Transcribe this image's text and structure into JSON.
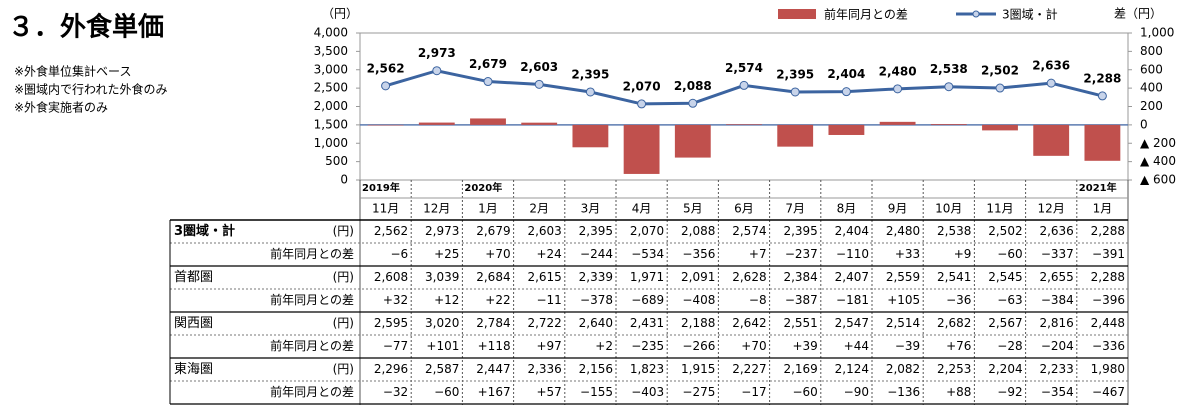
{
  "header": {
    "title": "３．外食単価",
    "notes": [
      "※外食単位集計ベース",
      "※圏域内で行われた外食のみ",
      "※外食実施者のみ"
    ]
  },
  "chart_data": {
    "type": "combo",
    "y_unit": "（円）",
    "y2_unit": "差（円）",
    "categories": [
      "11月",
      "12月",
      "1月",
      "2月",
      "3月",
      "4月",
      "5月",
      "6月",
      "7月",
      "8月",
      "9月",
      "10月",
      "11月",
      "12月",
      "1月"
    ],
    "years": [
      "2019年",
      null,
      "2020年",
      null,
      null,
      null,
      null,
      null,
      null,
      null,
      null,
      null,
      null,
      null,
      "2021年"
    ],
    "series": [
      {
        "name": "前年同月との差",
        "type": "bar",
        "axis": "y2",
        "color": "#c0504d",
        "values": [
          -6,
          25,
          70,
          24,
          -244,
          -534,
          -356,
          7,
          -237,
          -110,
          33,
          9,
          -60,
          -337,
          -391
        ]
      },
      {
        "name": "3圏域・計",
        "type": "line",
        "color": "#3c64a0",
        "values": [
          2562,
          2973,
          2679,
          2603,
          2395,
          2070,
          2088,
          2574,
          2395,
          2404,
          2480,
          2538,
          2502,
          2636,
          2288
        ],
        "value_labels": [
          "2,562",
          "2,973",
          "2,679",
          "2,603",
          "2,395",
          "2,070",
          "2,088",
          "2,574",
          "2,395",
          "2,404",
          "2,480",
          "2,538",
          "2,502",
          "2,636",
          "2,288"
        ]
      }
    ],
    "ylim": [
      0,
      4000
    ],
    "yticks": [
      0,
      500,
      {
        "value": 1000,
        "label": "1,000"
      },
      {
        "value": 1500,
        "label": "1,500"
      },
      {
        "value": 2000,
        "label": "2,000"
      },
      {
        "value": 2500,
        "label": "2,500"
      },
      {
        "value": 3000,
        "label": "3,000"
      },
      {
        "value": 3500,
        "label": "3,500"
      },
      {
        "value": 4000,
        "label": "4,000"
      }
    ],
    "y2lim": [
      -600,
      1000
    ],
    "y2ticks": [
      {
        "value": -600,
        "label": "▲ 600"
      },
      {
        "value": -400,
        "label": "▲ 400"
      },
      {
        "value": -200,
        "label": "▲ 200"
      },
      0,
      200,
      400,
      600,
      800,
      {
        "value": 1000,
        "label": "1,000"
      }
    ],
    "grid": false,
    "legend": "top-right"
  },
  "table": {
    "rows": [
      {
        "name": "3圏域・計",
        "unit": "(円)",
        "values": [
          "2,562",
          "2,973",
          "2,679",
          "2,603",
          "2,395",
          "2,070",
          "2,088",
          "2,574",
          "2,395",
          "2,404",
          "2,480",
          "2,538",
          "2,502",
          "2,636",
          "2,288"
        ],
        "diff_label": "前年同月との差",
        "diffs": [
          "−6",
          "+25",
          "+70",
          "+24",
          "−244",
          "−534",
          "−356",
          "+7",
          "−237",
          "−110",
          "+33",
          "+9",
          "−60",
          "−337",
          "−391"
        ]
      },
      {
        "name": "首都圏",
        "unit": "(円)",
        "values": [
          "2,608",
          "3,039",
          "2,684",
          "2,615",
          "2,339",
          "1,971",
          "2,091",
          "2,628",
          "2,384",
          "2,407",
          "2,559",
          "2,541",
          "2,545",
          "2,655",
          "2,288"
        ],
        "diff_label": "前年同月との差",
        "diffs": [
          "+32",
          "+12",
          "+22",
          "−11",
          "−378",
          "−689",
          "−408",
          "−8",
          "−387",
          "−181",
          "+105",
          "−36",
          "−63",
          "−384",
          "−396"
        ]
      },
      {
        "name": "関西圏",
        "unit": "(円)",
        "values": [
          "2,595",
          "3,020",
          "2,784",
          "2,722",
          "2,640",
          "2,431",
          "2,188",
          "2,642",
          "2,551",
          "2,547",
          "2,514",
          "2,682",
          "2,567",
          "2,816",
          "2,448"
        ],
        "diff_label": "前年同月との差",
        "diffs": [
          "−77",
          "+101",
          "+118",
          "+97",
          "+2",
          "−235",
          "−266",
          "+70",
          "+39",
          "+44",
          "−39",
          "+76",
          "−28",
          "−204",
          "−336"
        ]
      },
      {
        "name": "東海圏",
        "unit": "(円)",
        "values": [
          "2,296",
          "2,587",
          "2,447",
          "2,336",
          "2,156",
          "1,823",
          "1,915",
          "2,227",
          "2,169",
          "2,124",
          "2,082",
          "2,253",
          "2,204",
          "2,233",
          "1,980"
        ],
        "diff_label": "前年同月との差",
        "diffs": [
          "−32",
          "−60",
          "+167",
          "+57",
          "−155",
          "−403",
          "−275",
          "−17",
          "−60",
          "−90",
          "−136",
          "+88",
          "−92",
          "−354",
          "−467"
        ]
      }
    ]
  }
}
